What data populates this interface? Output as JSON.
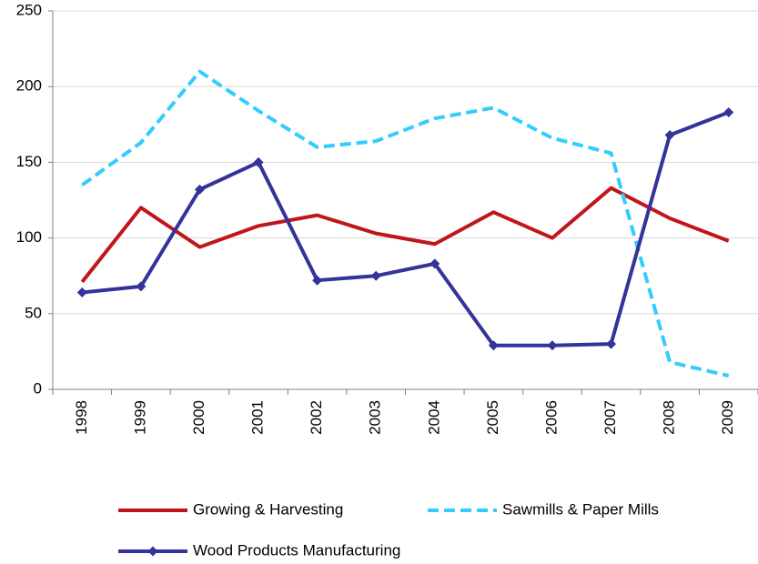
{
  "chart_data": {
    "type": "line",
    "categories": [
      "1998",
      "1999",
      "2000",
      "2001",
      "2002",
      "2003",
      "2004",
      "2005",
      "2006",
      "2007",
      "2008",
      "2009"
    ],
    "series": [
      {
        "name": "Growing & Harvesting",
        "color": "#c0161b",
        "dash": false,
        "marker": "none",
        "values": [
          71,
          120,
          94,
          108,
          115,
          103,
          96,
          117,
          100,
          133,
          113,
          98
        ]
      },
      {
        "name": "Sawmills & Paper Mills",
        "color": "#33ccff",
        "dash": true,
        "marker": "none",
        "values": [
          135,
          163,
          210,
          184,
          160,
          164,
          179,
          186,
          166,
          156,
          18,
          9
        ]
      },
      {
        "name": "Wood Products Manufacturing",
        "color": "#333399",
        "dash": false,
        "marker": "diamond",
        "values": [
          64,
          68,
          132,
          150,
          72,
          75,
          83,
          29,
          29,
          30,
          168,
          183
        ]
      }
    ],
    "ylim": [
      0,
      250
    ],
    "yticks": [
      0,
      50,
      100,
      150,
      200,
      250
    ],
    "grid": true,
    "legend": "bottom"
  }
}
